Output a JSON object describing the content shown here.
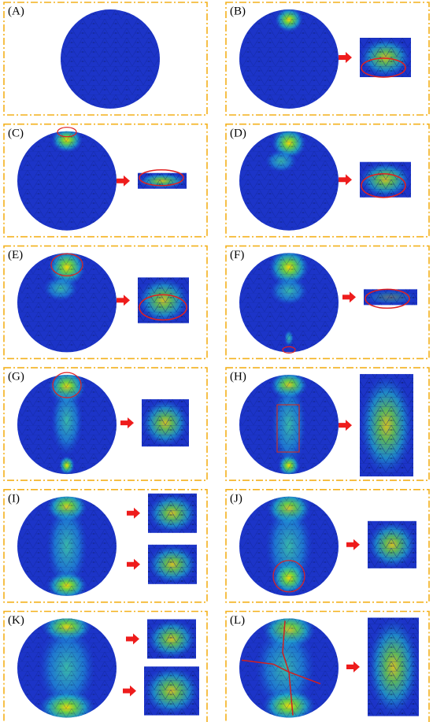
{
  "panels": [
    {
      "label": "(A)"
    },
    {
      "label": "(B)"
    },
    {
      "label": "(C)"
    },
    {
      "label": "(D)"
    },
    {
      "label": "(E)"
    },
    {
      "label": "(F)"
    },
    {
      "label": "(G)"
    },
    {
      "label": "(H)"
    },
    {
      "label": "(I)"
    },
    {
      "label": "(J)"
    },
    {
      "label": "(K)"
    },
    {
      "label": "(L)"
    }
  ]
}
